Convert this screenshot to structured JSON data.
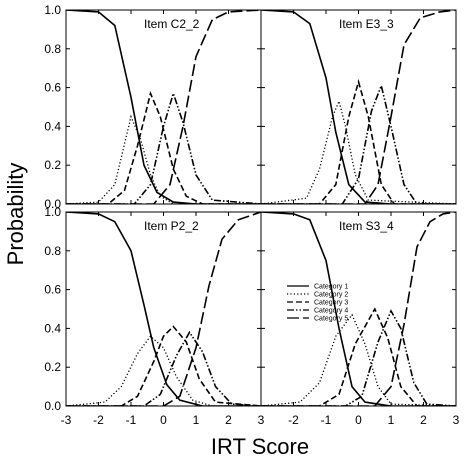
{
  "figure": {
    "xlabel": "IRT Score",
    "ylabel": "Probability"
  },
  "chart_data": {
    "type": "line",
    "xlim": [
      -3,
      3
    ],
    "ylim": [
      0,
      1
    ],
    "xticks": [
      -3,
      -2,
      -1,
      0,
      1,
      2,
      3
    ],
    "yticks": [
      0.0,
      0.2,
      0.4,
      0.6,
      0.8,
      1.0
    ],
    "ytick_labels": [
      "0.0",
      "0.2",
      "0.4",
      "0.6",
      "0.8",
      "1.0"
    ],
    "grid": false,
    "line_color": "#000000",
    "legend": {
      "panel": 3,
      "location": "lower-left",
      "entries": [
        "Category 1",
        "Category 2",
        "Category 3",
        "Category 4",
        "Category 5"
      ],
      "dash_styles": [
        "solid",
        "dotted",
        "short-dash",
        "dash-dot-dot",
        "long-dash"
      ]
    },
    "panels": [
      {
        "title": "Item C2_2",
        "curves": [
          {
            "category": "Category 1",
            "values": [
              [
                -3.0,
                1.0
              ],
              [
                -2.0,
                0.99
              ],
              [
                -1.5,
                0.92
              ],
              [
                -1.0,
                0.55
              ],
              [
                -0.6,
                0.2
              ],
              [
                -0.2,
                0.06
              ],
              [
                0.3,
                0.01
              ],
              [
                1.0,
                0.0
              ],
              [
                3.0,
                0.0
              ]
            ]
          },
          {
            "category": "Category 2",
            "values": [
              [
                -3.0,
                0.0
              ],
              [
                -2.0,
                0.01
              ],
              [
                -1.5,
                0.1
              ],
              [
                -1.0,
                0.45
              ],
              [
                -0.7,
                0.33
              ],
              [
                -0.4,
                0.15
              ],
              [
                -0.1,
                0.04
              ],
              [
                0.3,
                0.0
              ],
              [
                3.0,
                0.0
              ]
            ]
          },
          {
            "category": "Category 3",
            "values": [
              [
                -3.0,
                0.0
              ],
              [
                -1.7,
                0.0
              ],
              [
                -1.2,
                0.07
              ],
              [
                -0.8,
                0.3
              ],
              [
                -0.4,
                0.57
              ],
              [
                -0.1,
                0.45
              ],
              [
                0.3,
                0.18
              ],
              [
                0.7,
                0.04
              ],
              [
                1.2,
                0.0
              ],
              [
                3.0,
                0.0
              ]
            ]
          },
          {
            "category": "Category 4",
            "values": [
              [
                -3.0,
                0.0
              ],
              [
                -0.9,
                0.0
              ],
              [
                -0.4,
                0.1
              ],
              [
                0.0,
                0.4
              ],
              [
                0.3,
                0.57
              ],
              [
                0.6,
                0.42
              ],
              [
                1.0,
                0.15
              ],
              [
                1.5,
                0.02
              ],
              [
                3.0,
                0.0
              ]
            ]
          },
          {
            "category": "Category 5",
            "values": [
              [
                -3.0,
                0.0
              ],
              [
                -0.3,
                0.0
              ],
              [
                0.2,
                0.1
              ],
              [
                0.6,
                0.4
              ],
              [
                1.0,
                0.76
              ],
              [
                1.5,
                0.95
              ],
              [
                2.0,
                0.99
              ],
              [
                3.0,
                1.0
              ]
            ]
          }
        ]
      },
      {
        "title": "Item E3_3",
        "curves": [
          {
            "category": "Category 1",
            "values": [
              [
                -3.0,
                1.0
              ],
              [
                -2.0,
                0.99
              ],
              [
                -1.5,
                0.93
              ],
              [
                -1.0,
                0.65
              ],
              [
                -0.7,
                0.37
              ],
              [
                -0.3,
                0.1
              ],
              [
                0.2,
                0.01
              ],
              [
                1.0,
                0.0
              ],
              [
                3.0,
                0.0
              ]
            ]
          },
          {
            "category": "Category 2",
            "values": [
              [
                -3.0,
                0.0
              ],
              [
                -1.6,
                0.03
              ],
              [
                -1.2,
                0.18
              ],
              [
                -0.8,
                0.45
              ],
              [
                -0.6,
                0.53
              ],
              [
                -0.4,
                0.4
              ],
              [
                -0.1,
                0.15
              ],
              [
                0.3,
                0.02
              ],
              [
                3.0,
                0.0
              ]
            ]
          },
          {
            "category": "Category 3",
            "values": [
              [
                -3.0,
                0.0
              ],
              [
                -1.2,
                0.0
              ],
              [
                -0.7,
                0.1
              ],
              [
                -0.3,
                0.45
              ],
              [
                0.0,
                0.63
              ],
              [
                0.3,
                0.45
              ],
              [
                0.7,
                0.1
              ],
              [
                1.1,
                0.0
              ],
              [
                3.0,
                0.0
              ]
            ]
          },
          {
            "category": "Category 4",
            "values": [
              [
                -3.0,
                0.0
              ],
              [
                -0.5,
                0.0
              ],
              [
                0.0,
                0.13
              ],
              [
                0.4,
                0.48
              ],
              [
                0.7,
                0.61
              ],
              [
                1.0,
                0.4
              ],
              [
                1.4,
                0.1
              ],
              [
                1.8,
                0.0
              ],
              [
                3.0,
                0.0
              ]
            ]
          },
          {
            "category": "Category 5",
            "values": [
              [
                -3.0,
                0.0
              ],
              [
                0.2,
                0.0
              ],
              [
                0.6,
                0.1
              ],
              [
                1.0,
                0.45
              ],
              [
                1.4,
                0.82
              ],
              [
                1.9,
                0.96
              ],
              [
                2.5,
                0.99
              ],
              [
                3.0,
                1.0
              ]
            ]
          }
        ]
      },
      {
        "title": "Item P2_2",
        "curves": [
          {
            "category": "Category 1",
            "values": [
              [
                -3.0,
                1.0
              ],
              [
                -2.0,
                0.99
              ],
              [
                -1.5,
                0.95
              ],
              [
                -1.0,
                0.8
              ],
              [
                -0.6,
                0.52
              ],
              [
                -0.3,
                0.3
              ],
              [
                0.1,
                0.11
              ],
              [
                0.5,
                0.03
              ],
              [
                1.2,
                0.0
              ],
              [
                3.0,
                0.0
              ]
            ]
          },
          {
            "category": "Category 2",
            "values": [
              [
                -3.0,
                0.0
              ],
              [
                -1.8,
                0.02
              ],
              [
                -1.3,
                0.1
              ],
              [
                -0.8,
                0.27
              ],
              [
                -0.4,
                0.36
              ],
              [
                0.0,
                0.3
              ],
              [
                0.4,
                0.15
              ],
              [
                0.9,
                0.03
              ],
              [
                1.5,
                0.0
              ],
              [
                3.0,
                0.0
              ]
            ]
          },
          {
            "category": "Category 3",
            "values": [
              [
                -3.0,
                0.0
              ],
              [
                -1.3,
                0.0
              ],
              [
                -0.8,
                0.05
              ],
              [
                -0.3,
                0.23
              ],
              [
                0.0,
                0.36
              ],
              [
                0.3,
                0.41
              ],
              [
                0.7,
                0.33
              ],
              [
                1.1,
                0.14
              ],
              [
                1.6,
                0.02
              ],
              [
                3.0,
                0.0
              ]
            ]
          },
          {
            "category": "Category 4",
            "values": [
              [
                -3.0,
                0.0
              ],
              [
                -0.6,
                0.0
              ],
              [
                -0.1,
                0.06
              ],
              [
                0.4,
                0.26
              ],
              [
                0.8,
                0.38
              ],
              [
                1.2,
                0.28
              ],
              [
                1.6,
                0.1
              ],
              [
                2.1,
                0.01
              ],
              [
                3.0,
                0.0
              ]
            ]
          },
          {
            "category": "Category 5",
            "values": [
              [
                -3.0,
                0.0
              ],
              [
                0.0,
                0.0
              ],
              [
                0.5,
                0.05
              ],
              [
                1.0,
                0.3
              ],
              [
                1.4,
                0.62
              ],
              [
                1.8,
                0.86
              ],
              [
                2.3,
                0.96
              ],
              [
                3.0,
                1.0
              ]
            ]
          }
        ]
      },
      {
        "title": "Item S3_4",
        "curves": [
          {
            "category": "Category 1",
            "values": [
              [
                -3.0,
                1.0
              ],
              [
                -2.0,
                0.99
              ],
              [
                -1.5,
                0.96
              ],
              [
                -1.0,
                0.75
              ],
              [
                -0.6,
                0.4
              ],
              [
                -0.2,
                0.1
              ],
              [
                0.2,
                0.02
              ],
              [
                1.0,
                0.0
              ],
              [
                3.0,
                0.0
              ]
            ]
          },
          {
            "category": "Category 2",
            "values": [
              [
                -3.0,
                0.0
              ],
              [
                -1.8,
                0.02
              ],
              [
                -1.2,
                0.12
              ],
              [
                -0.7,
                0.36
              ],
              [
                -0.2,
                0.47
              ],
              [
                0.2,
                0.32
              ],
              [
                0.6,
                0.1
              ],
              [
                1.0,
                0.01
              ],
              [
                3.0,
                0.0
              ]
            ]
          },
          {
            "category": "Category 3",
            "values": [
              [
                -3.0,
                0.0
              ],
              [
                -1.2,
                0.0
              ],
              [
                -0.6,
                0.06
              ],
              [
                -0.1,
                0.32
              ],
              [
                0.5,
                0.5
              ],
              [
                0.9,
                0.35
              ],
              [
                1.3,
                0.1
              ],
              [
                1.8,
                0.0
              ],
              [
                3.0,
                0.0
              ]
            ]
          },
          {
            "category": "Category 4",
            "values": [
              [
                -3.0,
                0.0
              ],
              [
                -0.4,
                0.0
              ],
              [
                0.1,
                0.05
              ],
              [
                0.6,
                0.33
              ],
              [
                1.0,
                0.49
              ],
              [
                1.3,
                0.4
              ],
              [
                1.7,
                0.12
              ],
              [
                2.1,
                0.01
              ],
              [
                3.0,
                0.0
              ]
            ]
          },
          {
            "category": "Category 5",
            "values": [
              [
                -3.0,
                0.0
              ],
              [
                0.5,
                0.0
              ],
              [
                1.0,
                0.1
              ],
              [
                1.4,
                0.42
              ],
              [
                1.8,
                0.82
              ],
              [
                2.2,
                0.95
              ],
              [
                2.6,
                0.99
              ],
              [
                3.0,
                1.0
              ]
            ]
          }
        ]
      }
    ]
  }
}
